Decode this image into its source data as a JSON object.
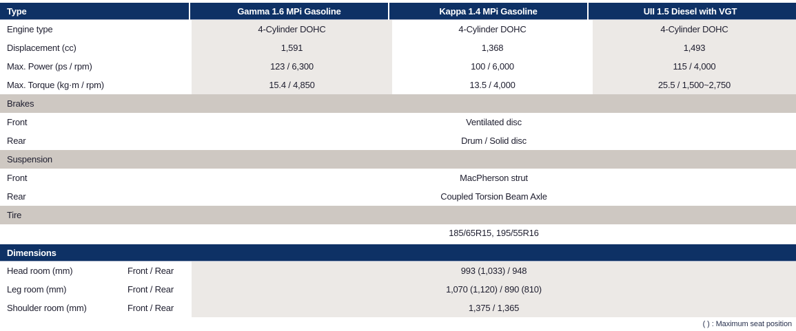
{
  "colors": {
    "brand_navy": "#0e3165",
    "section_header_bg": "#cec8c2",
    "value_cell_bg": "#ece9e6",
    "row_separator": "#d4cec8",
    "text": "#1d1d2e"
  },
  "engine_table": {
    "columns": [
      "Type",
      "Gamma 1.6 MPi Gasoline",
      "Kappa 1.4 MPi Gasoline",
      "UII 1.5 Diesel with VGT"
    ],
    "rows": [
      {
        "label": "Engine type",
        "values": [
          "4-Cylinder DOHC",
          "4-Cylinder DOHC",
          "4-Cylinder DOHC"
        ]
      },
      {
        "label": "Displacement (cc)",
        "values": [
          "1,591",
          "1,368",
          "1,493"
        ]
      },
      {
        "label": "Max. Power (ps / rpm)",
        "values": [
          "123 / 6,300",
          "100 / 6,000",
          "115 / 4,000"
        ]
      },
      {
        "label": "Max. Torque (kg·m / rpm)",
        "values": [
          "15.4 / 4,850",
          "13.5 / 4,000",
          "25.5 / 1,500~2,750"
        ]
      }
    ]
  },
  "brakes": {
    "title": "Brakes",
    "rows": [
      {
        "label": "Front",
        "value": "Ventilated disc"
      },
      {
        "label": "Rear",
        "value": "Drum / Solid disc"
      }
    ]
  },
  "suspension": {
    "title": "Suspension",
    "rows": [
      {
        "label": "Front",
        "value": "MacPherson strut"
      },
      {
        "label": "Rear",
        "value": "Coupled Torsion Beam Axle"
      }
    ]
  },
  "tire": {
    "title": "Tire",
    "value": "185/65R15, 195/55R16"
  },
  "dimensions_table": {
    "title": "Dimensions",
    "rows": [
      {
        "label": "Head room (mm)",
        "sublabel": "Front / Rear",
        "value": "993 (1,033) / 948"
      },
      {
        "label": "Leg room (mm)",
        "sublabel": "Front / Rear",
        "value": "1,070 (1,120) / 890 (810)"
      },
      {
        "label": "Shoulder room (mm)",
        "sublabel": "Front / Rear",
        "value": "1,375 / 1,365"
      }
    ]
  },
  "footnote": "( ) : Maximum seat position"
}
